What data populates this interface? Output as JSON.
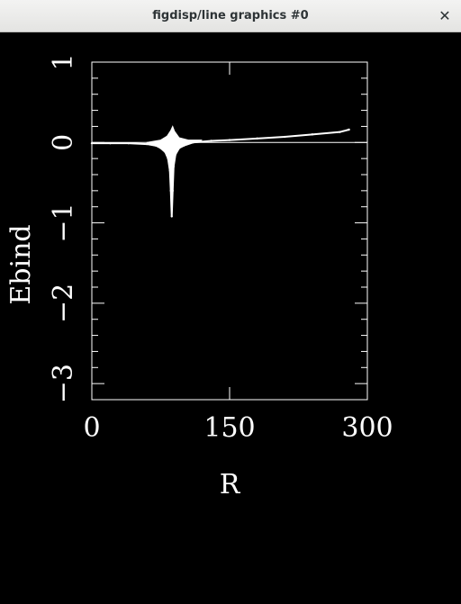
{
  "window": {
    "title": "figdisp/line graphics #0",
    "close_icon": "close-icon",
    "close_glyph": "✕"
  },
  "chart_data": {
    "type": "scatter",
    "title": "",
    "xlabel": "R",
    "ylabel": "Ebind",
    "xlim": [
      0,
      300
    ],
    "ylim": [
      -3.2,
      1
    ],
    "xticks": [
      0,
      150,
      300
    ],
    "xtick_labels": [
      "0",
      "150",
      "300"
    ],
    "yticks": [
      1,
      0,
      -1,
      -2,
      -3
    ],
    "ytick_labels": [
      "1",
      "0",
      "−1",
      "−2",
      "−3"
    ],
    "reference_line": {
      "y": 0
    },
    "grid": false,
    "legend": "none",
    "colors": {
      "background": "#000000",
      "foreground": "#ffffff"
    },
    "series": [
      {
        "points": [
          [
            0,
            -0.01
          ],
          [
            20,
            -0.01
          ],
          [
            40,
            -0.01
          ],
          [
            60,
            -0.02
          ],
          [
            70,
            -0.04
          ],
          [
            75,
            -0.07
          ],
          [
            80,
            -0.12
          ],
          [
            83,
            -0.2
          ],
          [
            85,
            -0.35
          ],
          [
            86,
            -0.6
          ],
          [
            87,
            -0.92
          ],
          [
            88,
            -0.6
          ],
          [
            89,
            -0.3
          ],
          [
            91,
            -0.15
          ],
          [
            95,
            -0.07
          ],
          [
            100,
            -0.04
          ],
          [
            110,
            0.0
          ],
          [
            130,
            0.02
          ],
          [
            150,
            0.03
          ],
          [
            180,
            0.05
          ],
          [
            210,
            0.07
          ],
          [
            240,
            0.1
          ],
          [
            270,
            0.13
          ],
          [
            280,
            0.16
          ]
        ],
        "upper_envelope": [
          [
            60,
            0.0
          ],
          [
            75,
            0.03
          ],
          [
            82,
            0.08
          ],
          [
            86,
            0.15
          ],
          [
            88,
            0.2
          ],
          [
            90,
            0.14
          ],
          [
            95,
            0.06
          ],
          [
            105,
            0.03
          ],
          [
            120,
            0.03
          ]
        ]
      }
    ]
  }
}
